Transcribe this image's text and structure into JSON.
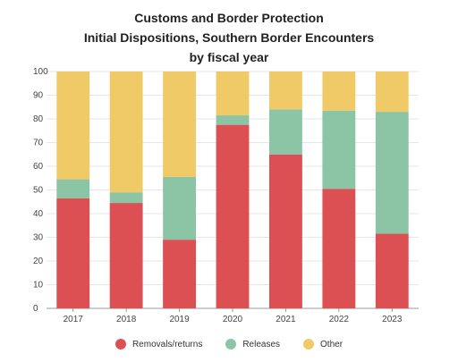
{
  "chart_data": {
    "type": "bar",
    "stacked": true,
    "title_lines": [
      "Customs and Border Protection",
      "Initial Dispositions, Southern Border Encounters",
      "by fiscal year"
    ],
    "categories": [
      "2017",
      "2018",
      "2019",
      "2020",
      "2021",
      "2022",
      "2023"
    ],
    "series": [
      {
        "name": "Removals/returns",
        "color": "#dc4f52",
        "values": [
          46.5,
          44.5,
          29,
          77.5,
          65,
          50.5,
          31.5
        ]
      },
      {
        "name": "Releases",
        "color": "#8cc5a6",
        "values": [
          8,
          4.5,
          26.5,
          4,
          19,
          33,
          51.5
        ]
      },
      {
        "name": "Other",
        "color": "#f0ca67",
        "values": [
          45.5,
          51,
          44.5,
          18.5,
          16,
          16.5,
          17
        ]
      }
    ],
    "yticks": [
      "0",
      "10",
      "20",
      "30",
      "40",
      "50",
      "60",
      "70",
      "80",
      "90",
      "100"
    ],
    "ylim": [
      0,
      100
    ],
    "grid": true,
    "legend_position": "bottom"
  }
}
